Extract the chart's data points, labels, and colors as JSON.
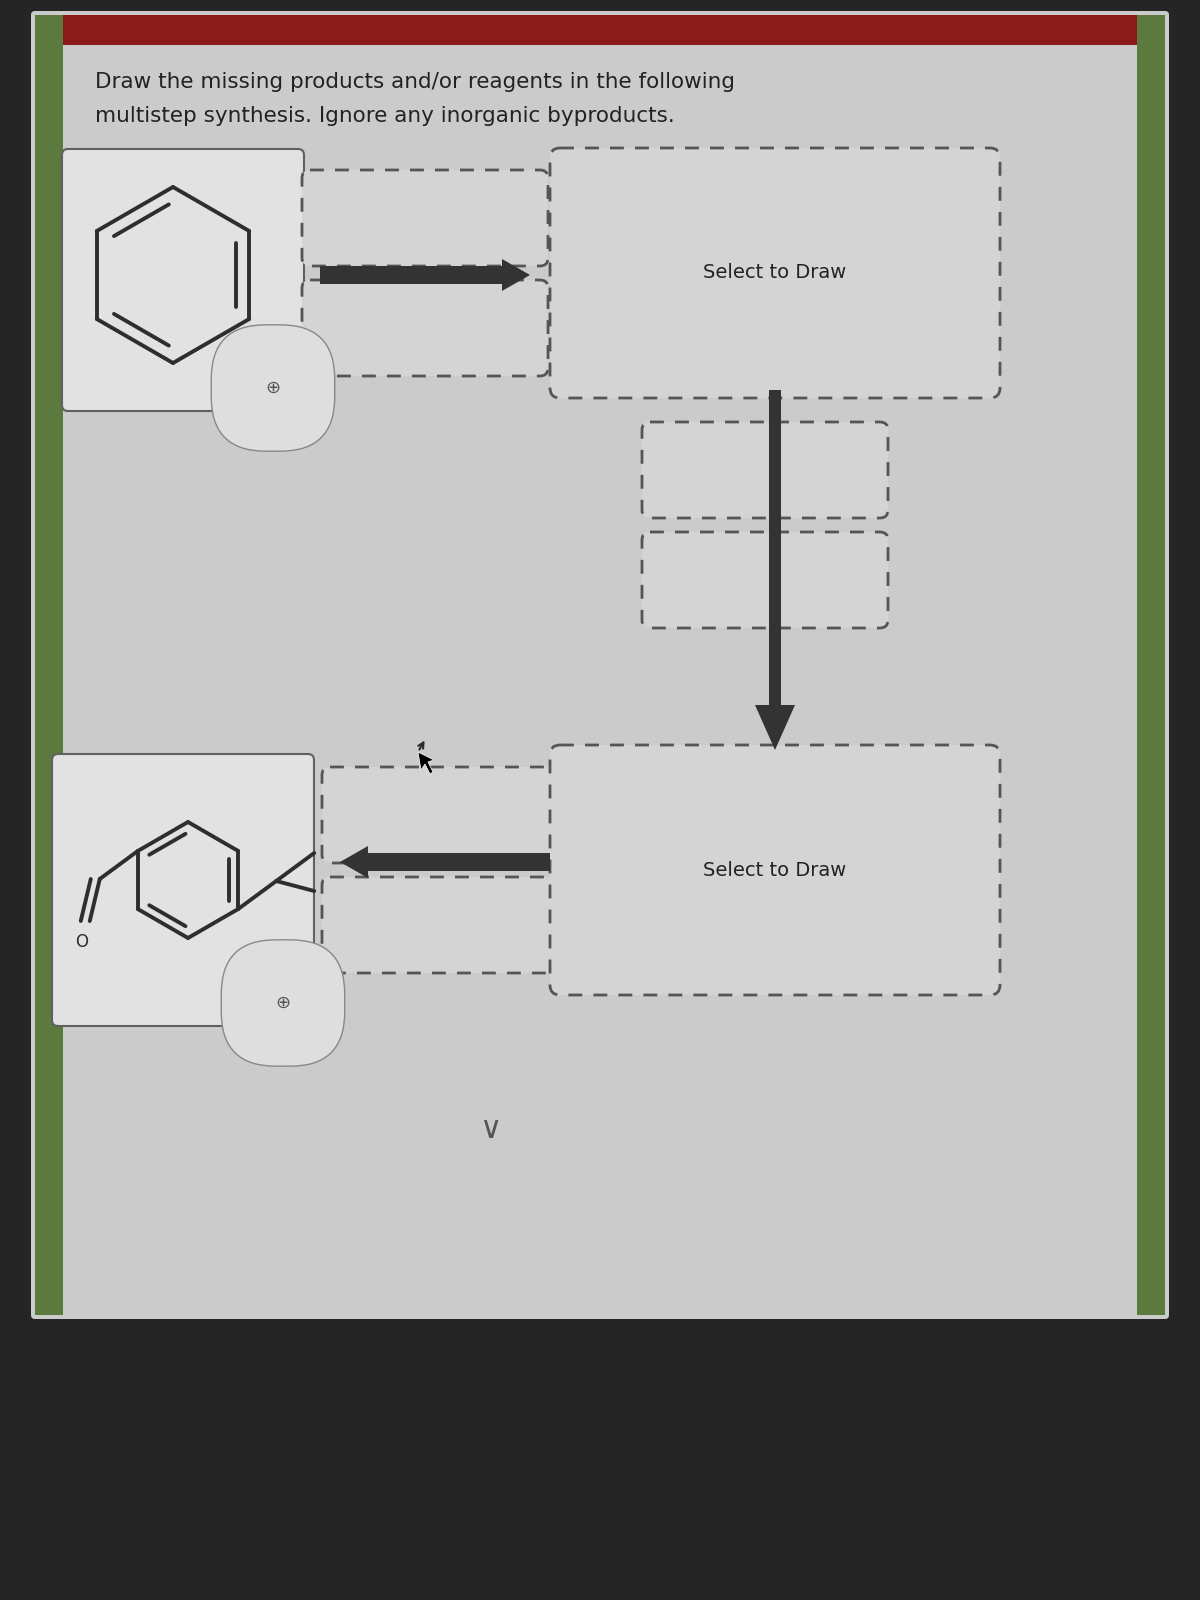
{
  "title_line1": "Draw the missing products and/or reagents in the following",
  "title_line2": "multistep synthesis. Ignore any inorganic byproducts.",
  "select_to_draw": "Select to Draw",
  "bg_page": "#cbcbcb",
  "bg_dark": "#252525",
  "bg_top_bar": "#8b1a1a",
  "bg_green": "#5c7a3e",
  "box_solid_bg": "#e2e2e2",
  "box_solid_edge": "#606060",
  "box_dash_bg": "#d4d4d4",
  "box_dash_edge": "#555555",
  "bond_color": "#2e2e2e",
  "arrow_color": "#333333",
  "text_color": "#222222",
  "mag_edge": "#888888",
  "mag_bg": "#dedede",
  "cursor_color": "#2a2a2a"
}
